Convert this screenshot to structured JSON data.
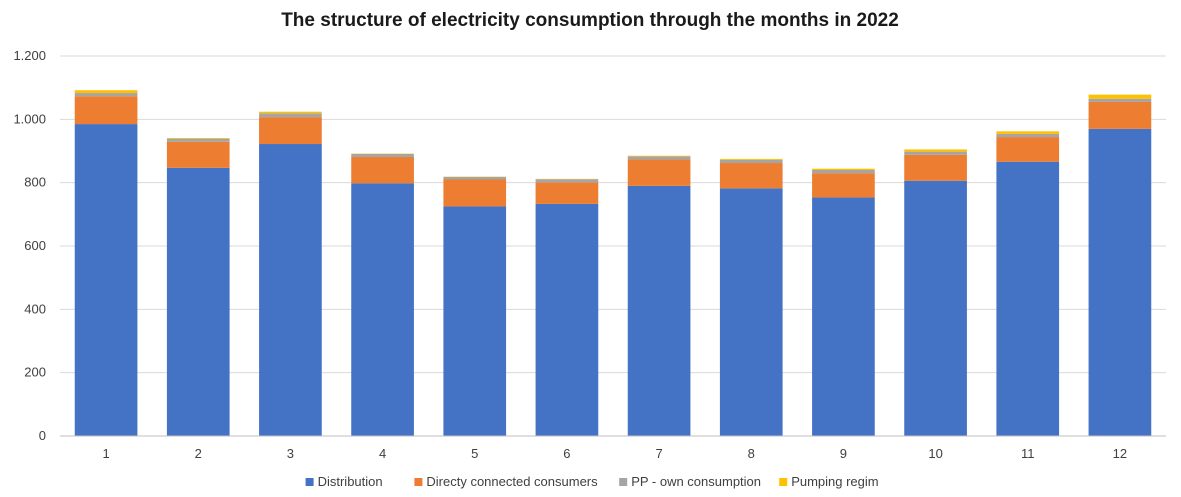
{
  "chart_data": {
    "type": "bar",
    "stacked": true,
    "title": "The structure of electricity consumption through the months in 2022",
    "xlabel": "",
    "ylabel": "",
    "categories": [
      "1",
      "2",
      "3",
      "4",
      "5",
      "6",
      "7",
      "8",
      "9",
      "10",
      "11",
      "12"
    ],
    "ylim": [
      0,
      1200
    ],
    "yticks": [
      0,
      200,
      400,
      600,
      800,
      1000,
      1200
    ],
    "ytick_labels": [
      "0",
      "200",
      "400",
      "600",
      "800",
      "1.000",
      "1.200"
    ],
    "grid": true,
    "legend_position": "bottom",
    "series": [
      {
        "name": "Distribution",
        "color": "#4472c4",
        "values": [
          985,
          847,
          922,
          798,
          725,
          733,
          790,
          782,
          753,
          806,
          866,
          970
        ]
      },
      {
        "name": "Directy connected consumers",
        "color": "#ed7d31",
        "values": [
          88,
          82,
          85,
          83,
          85,
          68,
          83,
          80,
          77,
          82,
          78,
          85
        ]
      },
      {
        "name": "PP - own consumption",
        "color": "#a5a5a5",
        "values": [
          10,
          10,
          12,
          10,
          8,
          10,
          10,
          10,
          10,
          10,
          10,
          10
        ]
      },
      {
        "name": "Pumping regim",
        "color": "#ffc000",
        "values": [
          9,
          2,
          5,
          1,
          1,
          1,
          2,
          3,
          4,
          7,
          8,
          13
        ]
      }
    ]
  }
}
